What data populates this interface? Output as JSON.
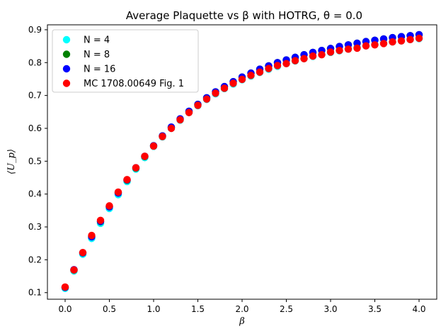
{
  "chart_data": {
    "type": "scatter",
    "title": "Average Plaquette vs β with HOTRG, θ = 0.0",
    "xlabel": "β",
    "ylabel": "⟨U_p⟩",
    "xlim": [
      -0.2,
      4.2
    ],
    "ylim": [
      0.08,
      0.915
    ],
    "xticks": [
      0.0,
      0.5,
      1.0,
      1.5,
      2.0,
      2.5,
      3.0,
      3.5,
      4.0
    ],
    "xtick_labels": [
      "0.0",
      "0.5",
      "1.0",
      "1.5",
      "2.0",
      "2.5",
      "3.0",
      "3.5",
      "4.0"
    ],
    "yticks": [
      0.1,
      0.2,
      0.3,
      0.4,
      0.5,
      0.6,
      0.7,
      0.8,
      0.9
    ],
    "ytick_labels": [
      "0.1",
      "0.2",
      "0.3",
      "0.4",
      "0.5",
      "0.6",
      "0.7",
      "0.8",
      "0.9"
    ],
    "grid": false,
    "legend_position": "top-left",
    "x": [
      0.0,
      0.1,
      0.2,
      0.3,
      0.4,
      0.5,
      0.6,
      0.7,
      0.8,
      0.9,
      1.0,
      1.1,
      1.2,
      1.3,
      1.4,
      1.5,
      1.6,
      1.7,
      1.8,
      1.9,
      2.0,
      2.1,
      2.2,
      2.3,
      2.4,
      2.5,
      2.6,
      2.7,
      2.8,
      2.9,
      3.0,
      3.1,
      3.2,
      3.3,
      3.4,
      3.5,
      3.6,
      3.7,
      3.8,
      3.9,
      4.0
    ],
    "series": [
      {
        "name": "N = 4",
        "color": "#00ffff",
        "values": [
          0.113,
          0.166,
          0.217,
          0.265,
          0.311,
          0.356,
          0.398,
          0.438,
          0.476,
          0.511,
          0.545,
          0.574,
          0.6,
          0.625,
          0.648,
          0.669,
          0.688,
          0.705,
          0.721,
          0.735,
          0.748,
          0.759,
          0.77,
          0.78,
          0.789,
          0.797,
          0.805,
          0.812,
          0.819,
          0.825,
          0.831,
          0.836,
          0.841,
          0.846,
          0.851,
          0.855,
          0.859,
          0.863,
          0.866,
          0.87,
          0.873
        ]
      },
      {
        "name": "N = 8",
        "color": "#008000",
        "values": [
          0.116,
          0.169,
          0.221,
          0.27,
          0.316,
          0.361,
          0.403,
          0.442,
          0.479,
          0.514,
          0.547,
          0.577,
          0.603,
          0.628,
          0.652,
          0.673,
          0.693,
          0.711,
          0.727,
          0.742,
          0.756,
          0.768,
          0.78,
          0.79,
          0.8,
          0.808,
          0.816,
          0.824,
          0.831,
          0.837,
          0.843,
          0.849,
          0.854,
          0.859,
          0.864,
          0.868,
          0.872,
          0.876,
          0.879,
          0.882,
          0.885
        ]
      },
      {
        "name": "N = 16",
        "color": "#0000ff",
        "values": [
          0.116,
          0.17,
          0.221,
          0.27,
          0.317,
          0.361,
          0.403,
          0.443,
          0.48,
          0.515,
          0.547,
          0.577,
          0.604,
          0.629,
          0.652,
          0.673,
          0.693,
          0.711,
          0.727,
          0.742,
          0.756,
          0.768,
          0.78,
          0.79,
          0.8,
          0.808,
          0.816,
          0.824,
          0.831,
          0.837,
          0.843,
          0.849,
          0.854,
          0.859,
          0.864,
          0.868,
          0.872,
          0.876,
          0.879,
          0.882,
          0.885
        ]
      },
      {
        "name": "MC 1708.00649 Fig. 1",
        "color": "#ff0000",
        "values": [
          0.117,
          0.169,
          0.222,
          0.274,
          0.32,
          0.364,
          0.406,
          0.444,
          0.48,
          0.515,
          0.546,
          0.575,
          0.6,
          0.626,
          0.648,
          0.67,
          0.689,
          0.707,
          0.722,
          0.737,
          0.749,
          0.761,
          0.771,
          0.782,
          0.791,
          0.797,
          0.806,
          0.812,
          0.82,
          0.824,
          0.832,
          0.837,
          0.841,
          0.844,
          0.851,
          0.854,
          0.858,
          0.863,
          0.866,
          0.87,
          0.874
        ]
      }
    ]
  }
}
